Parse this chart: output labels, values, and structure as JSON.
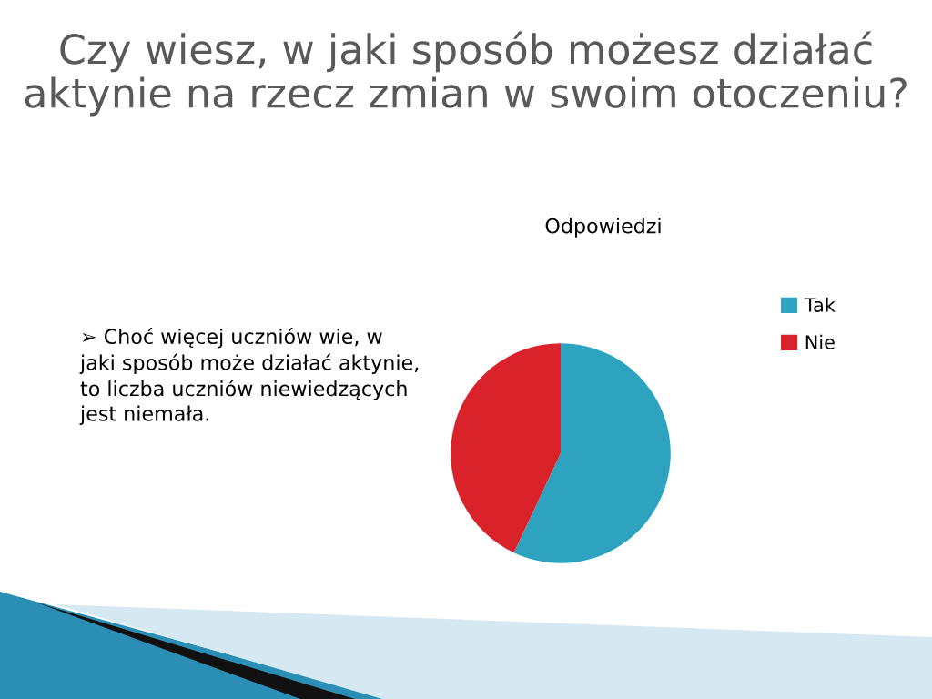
{
  "chart_data": {
    "type": "pie",
    "title": "Czy wiesz, w jaki sposób możesz działać aktynie na rzecz zmian w swoim otoczeniu?",
    "subtitle": "Odpowiedzi",
    "categories": [
      "Tak",
      "Nie"
    ],
    "values": [
      57,
      43
    ],
    "colors": [
      "#2ea3bf",
      "#d9222a"
    ],
    "legend": "right",
    "annotations": [
      "➢ Choć więcej uczniów wie, w jaki sposób może działać aktynie, to liczba uczniów niewiedzących jest niemała."
    ]
  }
}
